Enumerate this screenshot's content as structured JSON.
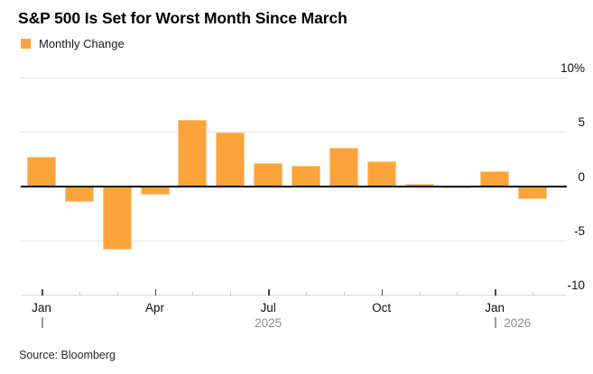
{
  "header": {
    "title": "S&P 500 Is Set for Worst Month Since March",
    "legend_label": "Monthly Change"
  },
  "source_note": "Source: Bloomberg",
  "colors": {
    "bar": "#FCA33B",
    "bar_border": "#FDCA8E",
    "grid": "#E4E4E4",
    "zero_line": "#000000",
    "axis_line": "#D9D9D9",
    "tick_major": "#4A4A4A",
    "tick_minor": "#C9C9C9",
    "text": "#111111",
    "year_text": "#8F8F8F"
  },
  "y_axis": {
    "labels": [
      {
        "text": "10%",
        "value": 10
      },
      {
        "text": "5",
        "value": 5
      },
      {
        "text": "0",
        "value": 0
      },
      {
        "text": "-5",
        "value": -5
      },
      {
        "text": "-10",
        "value": -10
      }
    ]
  },
  "x_axis": {
    "month_tick_labels": [
      {
        "text": "Jan",
        "month_index": 0
      },
      {
        "text": "Apr",
        "month_index": 3
      },
      {
        "text": "Jul",
        "month_index": 6
      },
      {
        "text": "Oct",
        "month_index": 9
      },
      {
        "text": "Jan",
        "month_index": 12
      }
    ],
    "year_labels": [
      {
        "text": "2025",
        "marker_month_index": 0
      },
      {
        "text": "2026",
        "marker_month_index": 12
      }
    ]
  },
  "chart_data": {
    "type": "bar",
    "title": "S&P 500 Is Set for Worst Month Since March",
    "series_name": "Monthly Change",
    "unit": "%",
    "categories": [
      "Jan 2025",
      "Feb 2025",
      "Mar 2025",
      "Apr 2025",
      "May 2025",
      "Jun 2025",
      "Jul 2025",
      "Aug 2025",
      "Sep 2025",
      "Oct 2025",
      "Nov 2025",
      "Dec 2025",
      "Jan 2026",
      "Feb 2026"
    ],
    "values": [
      2.7,
      -1.4,
      -5.8,
      -0.75,
      6.15,
      4.95,
      2.15,
      1.9,
      3.55,
      2.3,
      0.2,
      -0.1,
      1.4,
      -1.2
    ],
    "ylim": [
      -10,
      10
    ],
    "yticks": [
      10,
      5,
      0,
      -5,
      -10
    ],
    "grid": "horizontal",
    "legend_position": "top-left",
    "bar_color": "#FCA33B"
  }
}
